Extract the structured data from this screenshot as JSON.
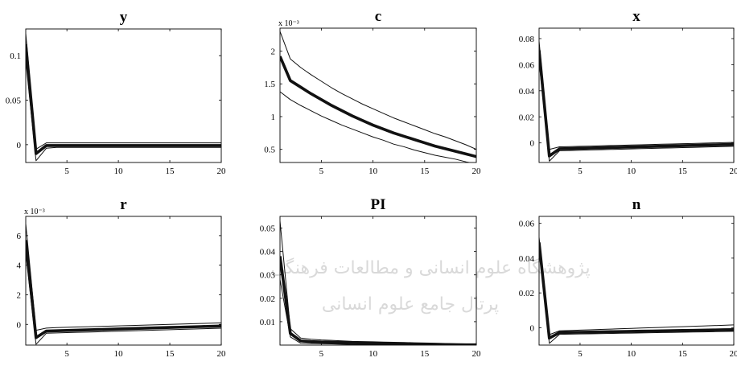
{
  "watermark": {
    "line1": "پژوهشگاه علوم انسانی و مطالعات فرهنگی",
    "line2": "پرتال جامع علوم انسانی",
    "color": "#d9d9d9"
  },
  "chart_data": [
    {
      "type": "line",
      "title": "y",
      "exponent_label": "",
      "x": [
        1,
        2,
        3,
        4,
        5,
        6,
        7,
        8,
        9,
        10,
        11,
        12,
        13,
        14,
        15,
        16,
        17,
        18,
        19,
        20
      ],
      "xlim": [
        1,
        20
      ],
      "ylim": [
        -0.02,
        0.13
      ],
      "xticks": [
        5,
        10,
        15,
        20
      ],
      "yticks": [
        0,
        0.05,
        0.1
      ],
      "ytick_labels": [
        "0",
        "0.05",
        "0.1"
      ],
      "series": [
        {
          "role": "upper",
          "values": [
            0.125,
            -0.005,
            0.002,
            0.002,
            0.002,
            0.002,
            0.002,
            0.002,
            0.002,
            0.002,
            0.002,
            0.002,
            0.002,
            0.002,
            0.002,
            0.002,
            0.002,
            0.002,
            0.002,
            0.002
          ]
        },
        {
          "role": "median",
          "values": [
            0.113,
            -0.01,
            -0.001,
            -0.001,
            -0.001,
            -0.001,
            -0.001,
            -0.001,
            -0.001,
            -0.001,
            -0.001,
            -0.001,
            -0.001,
            -0.001,
            -0.001,
            -0.001,
            -0.001,
            -0.001,
            -0.001,
            -0.001
          ]
        },
        {
          "role": "lower",
          "values": [
            0.095,
            -0.018,
            -0.004,
            -0.003,
            -0.003,
            -0.003,
            -0.003,
            -0.003,
            -0.003,
            -0.003,
            -0.003,
            -0.003,
            -0.003,
            -0.003,
            -0.003,
            -0.003,
            -0.003,
            -0.003,
            -0.003,
            -0.003
          ]
        }
      ]
    },
    {
      "type": "line",
      "title": "c",
      "exponent_label": "x 10⁻³",
      "x": [
        1,
        2,
        3,
        4,
        5,
        6,
        7,
        8,
        9,
        10,
        11,
        12,
        13,
        14,
        15,
        16,
        17,
        18,
        19,
        20
      ],
      "xlim": [
        1,
        20
      ],
      "ylim": [
        0.3,
        2.35
      ],
      "xticks": [
        5,
        10,
        15,
        20
      ],
      "yticks": [
        0.5,
        1,
        1.5,
        2
      ],
      "ytick_labels": [
        "0.5",
        "1",
        "1.5",
        "2"
      ],
      "series": [
        {
          "role": "upper",
          "values": [
            2.3,
            1.88,
            1.75,
            1.64,
            1.54,
            1.44,
            1.35,
            1.27,
            1.19,
            1.12,
            1.05,
            0.98,
            0.92,
            0.86,
            0.8,
            0.74,
            0.69,
            0.63,
            0.57,
            0.5
          ]
        },
        {
          "role": "median",
          "values": [
            1.92,
            1.55,
            1.45,
            1.35,
            1.26,
            1.17,
            1.09,
            1.01,
            0.94,
            0.87,
            0.81,
            0.75,
            0.7,
            0.65,
            0.6,
            0.55,
            0.51,
            0.47,
            0.43,
            0.39
          ]
        },
        {
          "role": "lower",
          "values": [
            1.38,
            1.26,
            1.17,
            1.09,
            1.01,
            0.94,
            0.87,
            0.81,
            0.75,
            0.69,
            0.64,
            0.58,
            0.54,
            0.49,
            0.45,
            0.41,
            0.38,
            0.35,
            0.31,
            0.28
          ]
        }
      ]
    },
    {
      "type": "line",
      "title": "x",
      "exponent_label": "",
      "x": [
        1,
        2,
        3,
        4,
        5,
        6,
        7,
        8,
        9,
        10,
        11,
        12,
        13,
        14,
        15,
        16,
        17,
        18,
        19,
        20
      ],
      "xlim": [
        1,
        20
      ],
      "ylim": [
        -0.015,
        0.088
      ],
      "xticks": [
        5,
        10,
        15,
        20
      ],
      "yticks": [
        0,
        0.02,
        0.04,
        0.06,
        0.08
      ],
      "ytick_labels": [
        "0",
        "0.02",
        "0.04",
        "0.06",
        "0.08"
      ],
      "series": [
        {
          "role": "upper",
          "values": [
            0.078,
            -0.005,
            -0.003,
            -0.0028,
            -0.0026,
            -0.0024,
            -0.0022,
            -0.002,
            -0.0018,
            -0.0016,
            -0.0014,
            -0.0012,
            -0.001,
            -0.0008,
            -0.0006,
            -0.0004,
            -0.0002,
            0,
            0.0002,
            0.0004
          ]
        },
        {
          "role": "median",
          "values": [
            0.071,
            -0.01,
            -0.0045,
            -0.0043,
            -0.0041,
            -0.0039,
            -0.0037,
            -0.0035,
            -0.0033,
            -0.0031,
            -0.0029,
            -0.0027,
            -0.0025,
            -0.0023,
            -0.0021,
            -0.0019,
            -0.0017,
            -0.0015,
            -0.0013,
            -0.0011
          ]
        },
        {
          "role": "lower",
          "values": [
            0.063,
            -0.014,
            -0.006,
            -0.0058,
            -0.0056,
            -0.0054,
            -0.0052,
            -0.005,
            -0.0048,
            -0.0046,
            -0.0044,
            -0.0042,
            -0.004,
            -0.0038,
            -0.0036,
            -0.0034,
            -0.0032,
            -0.003,
            -0.0028,
            -0.0026
          ]
        }
      ]
    },
    {
      "type": "line",
      "title": "r",
      "exponent_label": "x 10⁻³",
      "x": [
        1,
        2,
        3,
        4,
        5,
        6,
        7,
        8,
        9,
        10,
        11,
        12,
        13,
        14,
        15,
        16,
        17,
        18,
        19,
        20
      ],
      "xlim": [
        1,
        20
      ],
      "ylim": [
        -1.4,
        7.3
      ],
      "xticks": [
        5,
        10,
        15,
        20
      ],
      "yticks": [
        0,
        2,
        4,
        6
      ],
      "ytick_labels": [
        "0",
        "2",
        "4",
        "6"
      ],
      "series": [
        {
          "role": "upper",
          "values": [
            6.8,
            -0.4,
            -0.25,
            -0.22,
            -0.2,
            -0.18,
            -0.16,
            -0.14,
            -0.12,
            -0.1,
            -0.08,
            -0.06,
            -0.04,
            -0.02,
            0,
            0.02,
            0.04,
            0.06,
            0.08,
            0.1
          ]
        },
        {
          "role": "median",
          "values": [
            5.7,
            -0.9,
            -0.45,
            -0.43,
            -0.41,
            -0.39,
            -0.37,
            -0.35,
            -0.33,
            -0.31,
            -0.29,
            -0.27,
            -0.25,
            -0.23,
            -0.21,
            -0.19,
            -0.17,
            -0.15,
            -0.13,
            -0.11
          ]
        },
        {
          "role": "lower",
          "values": [
            4.8,
            -1.35,
            -0.6,
            -0.58,
            -0.56,
            -0.54,
            -0.52,
            -0.5,
            -0.48,
            -0.46,
            -0.44,
            -0.42,
            -0.4,
            -0.38,
            -0.36,
            -0.34,
            -0.32,
            -0.3,
            -0.28,
            -0.26
          ]
        }
      ]
    },
    {
      "type": "line",
      "title": "PI",
      "exponent_label": "",
      "x": [
        1,
        2,
        3,
        4,
        5,
        6,
        7,
        8,
        9,
        10,
        11,
        12,
        13,
        14,
        15,
        16,
        17,
        18,
        19,
        20
      ],
      "xlim": [
        1,
        20
      ],
      "ylim": [
        0.0,
        0.055
      ],
      "xticks": [
        5,
        10,
        15,
        20
      ],
      "yticks": [
        0.01,
        0.02,
        0.03,
        0.04,
        0.05
      ],
      "ytick_labels": [
        "0.01",
        "0.02",
        "0.03",
        "0.04",
        "0.05"
      ],
      "series": [
        {
          "role": "upper",
          "values": [
            0.053,
            0.007,
            0.003,
            0.0025,
            0.0022,
            0.002,
            0.0018,
            0.0016,
            0.0015,
            0.0014,
            0.0013,
            0.0012,
            0.0011,
            0.001,
            0.0009,
            0.0008,
            0.0007,
            0.0006,
            0.0005,
            0.0004
          ]
        },
        {
          "role": "median",
          "values": [
            0.038,
            0.005,
            0.0018,
            0.0015,
            0.0013,
            0.0012,
            0.0011,
            0.001,
            0.0009,
            0.0008,
            0.0007,
            0.0006,
            0.0005,
            0.0004,
            0.0003,
            0.0002,
            0.0002,
            0.0001,
            0.0001,
            0.0001
          ]
        },
        {
          "role": "lower",
          "values": [
            0.028,
            0.0035,
            0.0008,
            0.0007,
            0.0006,
            0.0005,
            0.0004,
            0.0003,
            0.0002,
            0.0002,
            0.0001,
            0.0001,
            0.0001,
            0,
            0,
            0,
            0,
            0,
            0,
            0
          ]
        }
      ]
    },
    {
      "type": "line",
      "title": "n",
      "exponent_label": "",
      "x": [
        1,
        2,
        3,
        4,
        5,
        6,
        7,
        8,
        9,
        10,
        11,
        12,
        13,
        14,
        15,
        16,
        17,
        18,
        19,
        20
      ],
      "xlim": [
        1,
        20
      ],
      "ylim": [
        -0.01,
        0.064
      ],
      "xticks": [
        5,
        10,
        15,
        20
      ],
      "yticks": [
        0,
        0.02,
        0.04,
        0.06
      ],
      "ytick_labels": [
        "0",
        "0.02",
        "0.04",
        "0.06"
      ],
      "series": [
        {
          "role": "upper",
          "values": [
            0.052,
            -0.004,
            -0.0018,
            -0.0016,
            -0.0014,
            -0.0012,
            -0.001,
            -0.0008,
            -0.0006,
            -0.0004,
            -0.0002,
            0,
            0.0002,
            0.0004,
            0.0006,
            0.0008,
            0.001,
            0.0012,
            0.0014,
            0.0016
          ]
        },
        {
          "role": "median",
          "values": [
            0.049,
            -0.006,
            -0.0028,
            -0.0027,
            -0.0026,
            -0.0025,
            -0.0024,
            -0.0023,
            -0.0022,
            -0.0021,
            -0.002,
            -0.0019,
            -0.0018,
            -0.0017,
            -0.0016,
            -0.0015,
            -0.0014,
            -0.0013,
            -0.0012,
            -0.0011
          ]
        },
        {
          "role": "lower",
          "values": [
            0.045,
            -0.009,
            -0.0038,
            -0.0037,
            -0.0036,
            -0.0035,
            -0.0034,
            -0.0033,
            -0.0032,
            -0.0031,
            -0.003,
            -0.0029,
            -0.0028,
            -0.0027,
            -0.0026,
            -0.0025,
            -0.0024,
            -0.0023,
            -0.0022,
            -0.0021
          ]
        }
      ]
    }
  ]
}
